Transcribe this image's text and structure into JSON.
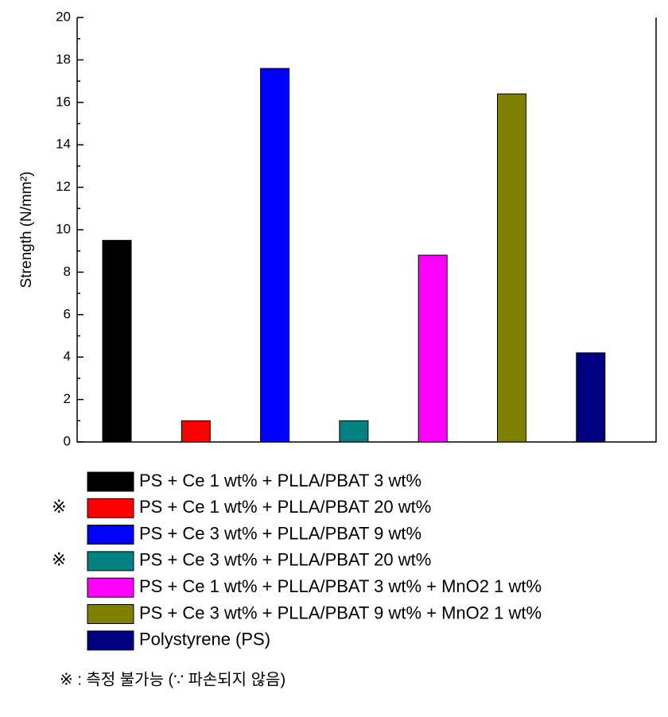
{
  "chart_data": {
    "type": "bar",
    "y_label": "Strength (N/mm²)",
    "series": [
      {
        "name": "PS + Ce 1 wt% + PLLA/PBAT 3 wt%",
        "color": "#000000",
        "values": [
          9.5
        ]
      },
      {
        "name": "PS + Ce 1 wt% + PLLA/PBAT 20 wt%",
        "color": "#ff0000",
        "values": [
          1.0
        ],
        "mark": "※"
      },
      {
        "name": "PS + Ce 3 wt% + PLLA/PBAT 9 wt%",
        "color": "#0000ff",
        "values": [
          17.6
        ]
      },
      {
        "name": "PS + Ce 3 wt% + PLLA/PBAT 20 wt%",
        "color": "#008080",
        "values": [
          1.0
        ],
        "mark": "※"
      },
      {
        "name": "PS + Ce 1 wt% + PLLA/PBAT 3 wt% + MnO2 1 wt%",
        "color": "#ff00ff",
        "values": [
          8.8
        ]
      },
      {
        "name": "PS + Ce 3 wt% + PLLA/PBAT 9 wt% + MnO2 1 wt%",
        "color": "#808000",
        "values": [
          16.4
        ]
      },
      {
        "name": "Polystyrene (PS)",
        "color": "#000080",
        "values": [
          4.2
        ]
      }
    ],
    "ylim": [
      0,
      20
    ],
    "yticks": [
      0,
      2,
      4,
      6,
      8,
      10,
      12,
      14,
      16,
      18,
      20
    ],
    "yminorticks": [
      1,
      3,
      5,
      7,
      9,
      11,
      13,
      15,
      17,
      19
    ],
    "footnote": "※ : 측정 불가능 (∵ 파손되지 않음)"
  }
}
